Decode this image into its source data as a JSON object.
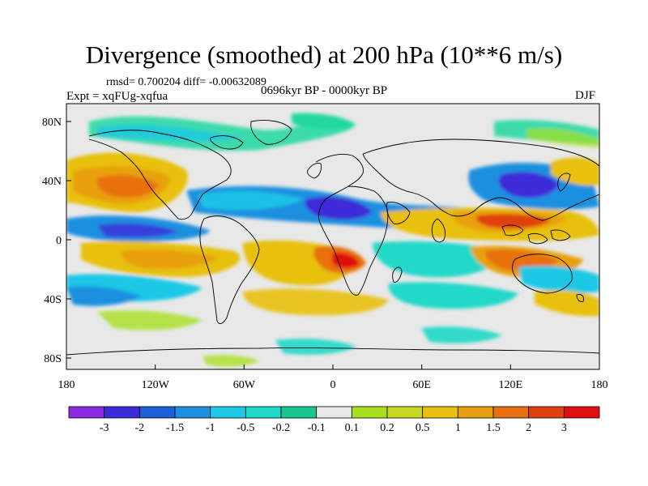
{
  "title": "Divergence (smoothed) at 200 hPa (10**6 m/s)",
  "stats_line": "rmsd= 0.700204 diff= -0.00632089",
  "experiment": "Expt = xqFUg-xqfua",
  "period": "0696kyr BP - 0000kyr BP",
  "season": "DJF",
  "axes": {
    "lat_labels": [
      "80N",
      "40N",
      "0",
      "40S",
      "80S"
    ],
    "lon_labels": [
      "180",
      "120W",
      "60W",
      "0",
      "60E",
      "120E",
      "180"
    ]
  },
  "colorbar": {
    "labels": [
      "-3",
      "-2",
      "-1.5",
      "-1",
      "-0.5",
      "-0.2",
      "-0.1",
      "0.1",
      "0.2",
      "0.5",
      "1",
      "1.5",
      "2",
      "3"
    ],
    "colors": [
      "#8a2be2",
      "#3c2bd8",
      "#1f5fd6",
      "#1e90e0",
      "#1ec8e6",
      "#20d8c8",
      "#18c890",
      "#e8e8e8",
      "#a8e020",
      "#c8d820",
      "#e8c010",
      "#e8a010",
      "#e87010",
      "#e04010",
      "#e01010"
    ]
  },
  "colors": {
    "background_field": "#e8e8e8",
    "coastline": "#000000"
  }
}
